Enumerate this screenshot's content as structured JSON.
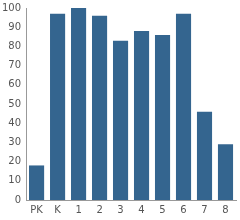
{
  "chart_data": {
    "type": "bar",
    "categories": [
      "PK",
      "K",
      "1",
      "2",
      "3",
      "4",
      "5",
      "6",
      "7",
      "8"
    ],
    "values": [
      18,
      97,
      100,
      96,
      83,
      88,
      86,
      97,
      46,
      29
    ],
    "color": "#34658f",
    "ylim": [
      0,
      100
    ],
    "yticks": [
      0,
      10,
      20,
      30,
      40,
      50,
      60,
      70,
      80,
      90,
      100
    ],
    "grid": false
  }
}
